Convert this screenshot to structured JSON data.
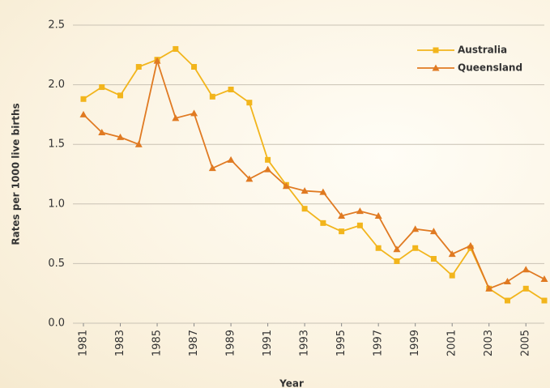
{
  "chart_data": {
    "type": "line",
    "x_label": "Year",
    "y_label": "Rates per 1000 live births",
    "x": [
      1981,
      1982,
      1983,
      1984,
      1985,
      1986,
      1987,
      1988,
      1989,
      1990,
      1991,
      1992,
      1993,
      1994,
      1995,
      1996,
      1997,
      1998,
      1999,
      2000,
      2001,
      2002,
      2003,
      2004,
      2005,
      2006
    ],
    "series": [
      {
        "name": "Australia",
        "color": "#f2b51c",
        "marker": "square",
        "values": [
          1.88,
          1.98,
          1.91,
          2.15,
          2.21,
          2.3,
          2.15,
          1.9,
          1.96,
          1.85,
          1.37,
          1.16,
          0.96,
          0.84,
          0.77,
          0.82,
          0.63,
          0.52,
          0.63,
          0.54,
          0.4,
          0.63,
          0.29,
          0.19,
          0.29,
          0.19
        ]
      },
      {
        "name": "Queensland",
        "color": "#e07a22",
        "marker": "triangle",
        "values": [
          1.75,
          1.6,
          1.56,
          1.5,
          2.2,
          1.72,
          1.76,
          1.3,
          1.37,
          1.21,
          1.29,
          1.15,
          1.11,
          1.1,
          0.9,
          0.94,
          0.9,
          0.62,
          0.79,
          0.77,
          0.58,
          0.65,
          0.29,
          0.35,
          0.45,
          0.37
        ]
      }
    ],
    "xlim": [
      1981,
      2006
    ],
    "xticks": [
      1981,
      1983,
      1985,
      1987,
      1989,
      1991,
      1993,
      1995,
      1997,
      1999,
      2001,
      2003,
      2005
    ],
    "ylim": [
      0,
      2.5
    ],
    "yticks": [
      {
        "value": 0,
        "label": "0.0"
      },
      0.5,
      {
        "value": 1,
        "label": "1.0"
      },
      1.5,
      {
        "value": 2,
        "label": "2.0"
      },
      2.5
    ],
    "grid": true,
    "legend": "upper right"
  }
}
